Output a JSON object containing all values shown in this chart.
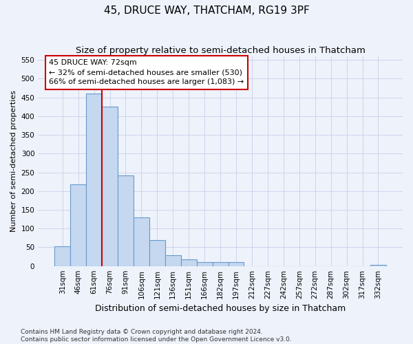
{
  "title": "45, DRUCE WAY, THATCHAM, RG19 3PF",
  "subtitle": "Size of property relative to semi-detached houses in Thatcham",
  "xlabel": "Distribution of semi-detached houses by size in Thatcham",
  "ylabel": "Number of semi-detached properties",
  "categories": [
    "31sqm",
    "46sqm",
    "61sqm",
    "76sqm",
    "91sqm",
    "106sqm",
    "121sqm",
    "136sqm",
    "151sqm",
    "166sqm",
    "182sqm",
    "197sqm",
    "212sqm",
    "227sqm",
    "242sqm",
    "257sqm",
    "272sqm",
    "287sqm",
    "302sqm",
    "317sqm",
    "332sqm"
  ],
  "values": [
    53,
    218,
    460,
    425,
    242,
    129,
    70,
    29,
    18,
    10,
    10,
    10,
    0,
    0,
    0,
    0,
    0,
    0,
    0,
    0,
    4
  ],
  "bar_color": "#c5d8f0",
  "bar_edge_color": "#6699cc",
  "red_line_label": "45 DRUCE WAY: 72sqm",
  "annotation_line1": "← 32% of semi-detached houses are smaller (530)",
  "annotation_line2": "66% of semi-detached houses are larger (1,083) →",
  "red_line_bin": 3,
  "ylim_max": 560,
  "yticks": [
    0,
    50,
    100,
    150,
    200,
    250,
    300,
    350,
    400,
    450,
    500,
    550
  ],
  "footer1": "Contains HM Land Registry data © Crown copyright and database right 2024.",
  "footer2": "Contains public sector information licensed under the Open Government Licence v3.0.",
  "bg_color": "#eef2fb",
  "grid_color": "#c8d0e8",
  "title_fontsize": 11,
  "subtitle_fontsize": 9.5,
  "xlabel_fontsize": 9,
  "ylabel_fontsize": 8,
  "tick_fontsize": 7.5,
  "footer_fontsize": 6.5,
  "annot_fontsize": 8,
  "bar_width": 1.0
}
